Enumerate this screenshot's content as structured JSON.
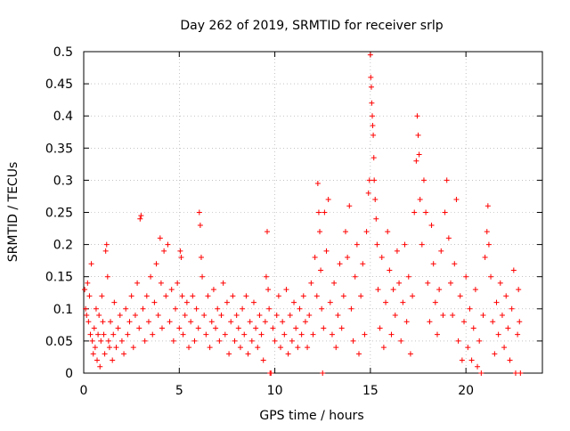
{
  "chart_data": {
    "type": "scatter",
    "title": "Day 262 of 2019, SRMTID for receiver srlp",
    "xlabel": "GPS time / hours",
    "ylabel": "SRMTID / TECUs",
    "xlim": [
      0,
      24
    ],
    "ylim": [
      0,
      0.5
    ],
    "x_ticks": [
      0,
      5,
      10,
      15,
      20
    ],
    "x_tick_labels": [
      "0",
      "5",
      "10",
      "15",
      "20"
    ],
    "y_ticks": [
      0,
      0.05,
      0.1,
      0.15,
      0.2,
      0.25,
      0.3,
      0.35,
      0.4,
      0.45,
      0.5
    ],
    "y_tick_labels": [
      "0",
      "0.05",
      "0.1",
      "0.15",
      "0.2",
      "0.25",
      "0.3",
      "0.35",
      "0.4",
      "0.45",
      "0.5"
    ],
    "grid": true,
    "marker": "+",
    "series": [
      {
        "name": "SRMTID",
        "color": "#ff0000",
        "points": [
          [
            0.05,
            0.13
          ],
          [
            0.1,
            0.1
          ],
          [
            0.15,
            0.09
          ],
          [
            0.2,
            0.14
          ],
          [
            0.25,
            0.08
          ],
          [
            0.3,
            0.12
          ],
          [
            0.35,
            0.06
          ],
          [
            0.4,
            0.17
          ],
          [
            0.45,
            0.05
          ],
          [
            0.5,
            0.03
          ],
          [
            0.55,
            0.07
          ],
          [
            0.6,
            0.04
          ],
          [
            0.65,
            0.1
          ],
          [
            0.7,
            0.02
          ],
          [
            0.75,
            0.06
          ],
          [
            0.8,
            0.09
          ],
          [
            0.85,
            0.01
          ],
          [
            0.9,
            0.05
          ],
          [
            0.95,
            0.12
          ],
          [
            1.0,
            0.08
          ],
          [
            1.05,
            0.06
          ],
          [
            1.1,
            0.03
          ],
          [
            1.15,
            0.19
          ],
          [
            1.2,
            0.2
          ],
          [
            1.25,
            0.15
          ],
          [
            1.3,
            0.05
          ],
          [
            1.35,
            0.04
          ],
          [
            1.4,
            0.08
          ],
          [
            1.5,
            0.02
          ],
          [
            1.55,
            0.06
          ],
          [
            1.6,
            0.11
          ],
          [
            1.7,
            0.04
          ],
          [
            1.8,
            0.07
          ],
          [
            1.9,
            0.09
          ],
          [
            2.0,
            0.05
          ],
          [
            2.1,
            0.03
          ],
          [
            2.2,
            0.1
          ],
          [
            2.3,
            0.06
          ],
          [
            2.4,
            0.08
          ],
          [
            2.5,
            0.12
          ],
          [
            2.6,
            0.04
          ],
          [
            2.7,
            0.09
          ],
          [
            2.8,
            0.14
          ],
          [
            2.9,
            0.07
          ],
          [
            2.95,
            0.24
          ],
          [
            3.0,
            0.245
          ],
          [
            3.1,
            0.1
          ],
          [
            3.2,
            0.05
          ],
          [
            3.3,
            0.12
          ],
          [
            3.4,
            0.08
          ],
          [
            3.5,
            0.15
          ],
          [
            3.6,
            0.06
          ],
          [
            3.7,
            0.11
          ],
          [
            3.8,
            0.17
          ],
          [
            3.9,
            0.09
          ],
          [
            4.0,
            0.21
          ],
          [
            4.05,
            0.14
          ],
          [
            4.1,
            0.07
          ],
          [
            4.2,
            0.19
          ],
          [
            4.3,
            0.12
          ],
          [
            4.4,
            0.2
          ],
          [
            4.5,
            0.08
          ],
          [
            4.6,
            0.13
          ],
          [
            4.7,
            0.05
          ],
          [
            4.8,
            0.1
          ],
          [
            4.9,
            0.14
          ],
          [
            5.0,
            0.07
          ],
          [
            5.05,
            0.19
          ],
          [
            5.1,
            0.18
          ],
          [
            5.15,
            0.12
          ],
          [
            5.2,
            0.06
          ],
          [
            5.3,
            0.09
          ],
          [
            5.4,
            0.11
          ],
          [
            5.5,
            0.04
          ],
          [
            5.6,
            0.08
          ],
          [
            5.7,
            0.12
          ],
          [
            5.8,
            0.05
          ],
          [
            5.9,
            0.1
          ],
          [
            6.0,
            0.07
          ],
          [
            6.05,
            0.25
          ],
          [
            6.1,
            0.23
          ],
          [
            6.15,
            0.18
          ],
          [
            6.2,
            0.15
          ],
          [
            6.3,
            0.09
          ],
          [
            6.4,
            0.06
          ],
          [
            6.5,
            0.12
          ],
          [
            6.6,
            0.04
          ],
          [
            6.7,
            0.08
          ],
          [
            6.8,
            0.13
          ],
          [
            6.9,
            0.07
          ],
          [
            7.0,
            0.1
          ],
          [
            7.1,
            0.05
          ],
          [
            7.2,
            0.09
          ],
          [
            7.3,
            0.14
          ],
          [
            7.4,
            0.06
          ],
          [
            7.5,
            0.11
          ],
          [
            7.6,
            0.03
          ],
          [
            7.7,
            0.08
          ],
          [
            7.8,
            0.12
          ],
          [
            7.9,
            0.05
          ],
          [
            8.0,
            0.09
          ],
          [
            8.1,
            0.07
          ],
          [
            8.2,
            0.04
          ],
          [
            8.3,
            0.1
          ],
          [
            8.4,
            0.06
          ],
          [
            8.5,
            0.12
          ],
          [
            8.6,
            0.03
          ],
          [
            8.7,
            0.08
          ],
          [
            8.8,
            0.05
          ],
          [
            8.9,
            0.11
          ],
          [
            9.0,
            0.07
          ],
          [
            9.1,
            0.04
          ],
          [
            9.2,
            0.09
          ],
          [
            9.3,
            0.06
          ],
          [
            9.4,
            0.02
          ],
          [
            9.5,
            0.08
          ],
          [
            9.55,
            0.15
          ],
          [
            9.6,
            0.22
          ],
          [
            9.65,
            0.13
          ],
          [
            9.7,
            0.1
          ],
          [
            9.75,
            0.0
          ],
          [
            9.8,
            0.0
          ],
          [
            9.9,
            0.07
          ],
          [
            10.0,
            0.05
          ],
          [
            10.1,
            0.09
          ],
          [
            10.2,
            0.12
          ],
          [
            10.3,
            0.04
          ],
          [
            10.4,
            0.08
          ],
          [
            10.5,
            0.06
          ],
          [
            10.6,
            0.13
          ],
          [
            10.7,
            0.03
          ],
          [
            10.8,
            0.09
          ],
          [
            10.9,
            0.05
          ],
          [
            11.0,
            0.11
          ],
          [
            11.1,
            0.07
          ],
          [
            11.2,
            0.04
          ],
          [
            11.3,
            0.1
          ],
          [
            11.4,
            0.06
          ],
          [
            11.5,
            0.12
          ],
          [
            11.6,
            0.08
          ],
          [
            11.7,
            0.04
          ],
          [
            11.8,
            0.09
          ],
          [
            11.9,
            0.14
          ],
          [
            12.0,
            0.06
          ],
          [
            12.1,
            0.18
          ],
          [
            12.2,
            0.12
          ],
          [
            12.25,
            0.295
          ],
          [
            12.3,
            0.25
          ],
          [
            12.35,
            0.22
          ],
          [
            12.4,
            0.16
          ],
          [
            12.45,
            0.1
          ],
          [
            12.5,
            0.0
          ],
          [
            12.55,
            0.07
          ],
          [
            12.6,
            0.25
          ],
          [
            12.7,
            0.19
          ],
          [
            12.8,
            0.27
          ],
          [
            12.9,
            0.11
          ],
          [
            13.0,
            0.06
          ],
          [
            13.1,
            0.14
          ],
          [
            13.2,
            0.04
          ],
          [
            13.3,
            0.09
          ],
          [
            13.4,
            0.17
          ],
          [
            13.5,
            0.07
          ],
          [
            13.6,
            0.12
          ],
          [
            13.7,
            0.22
          ],
          [
            13.8,
            0.18
          ],
          [
            13.9,
            0.26
          ],
          [
            14.0,
            0.1
          ],
          [
            14.1,
            0.05
          ],
          [
            14.2,
            0.15
          ],
          [
            14.3,
            0.2
          ],
          [
            14.4,
            0.03
          ],
          [
            14.5,
            0.12
          ],
          [
            14.6,
            0.17
          ],
          [
            14.7,
            0.06
          ],
          [
            14.8,
            0.22
          ],
          [
            14.9,
            0.28
          ],
          [
            14.95,
            0.3
          ],
          [
            15.0,
            0.495
          ],
          [
            15.02,
            0.46
          ],
          [
            15.05,
            0.445
          ],
          [
            15.07,
            0.42
          ],
          [
            15.1,
            0.4
          ],
          [
            15.12,
            0.385
          ],
          [
            15.15,
            0.37
          ],
          [
            15.18,
            0.335
          ],
          [
            15.2,
            0.3
          ],
          [
            15.25,
            0.27
          ],
          [
            15.3,
            0.24
          ],
          [
            15.35,
            0.2
          ],
          [
            15.4,
            0.13
          ],
          [
            15.5,
            0.07
          ],
          [
            15.6,
            0.18
          ],
          [
            15.7,
            0.04
          ],
          [
            15.8,
            0.11
          ],
          [
            15.9,
            0.22
          ],
          [
            16.0,
            0.16
          ],
          [
            16.1,
            0.06
          ],
          [
            16.2,
            0.13
          ],
          [
            16.3,
            0.09
          ],
          [
            16.4,
            0.19
          ],
          [
            16.5,
            0.14
          ],
          [
            16.6,
            0.05
          ],
          [
            16.7,
            0.11
          ],
          [
            16.8,
            0.2
          ],
          [
            16.9,
            0.08
          ],
          [
            17.0,
            0.15
          ],
          [
            17.1,
            0.03
          ],
          [
            17.2,
            0.12
          ],
          [
            17.3,
            0.25
          ],
          [
            17.4,
            0.33
          ],
          [
            17.45,
            0.4
          ],
          [
            17.5,
            0.37
          ],
          [
            17.55,
            0.34
          ],
          [
            17.6,
            0.27
          ],
          [
            17.7,
            0.2
          ],
          [
            17.8,
            0.3
          ],
          [
            17.9,
            0.25
          ],
          [
            18.0,
            0.14
          ],
          [
            18.1,
            0.08
          ],
          [
            18.2,
            0.23
          ],
          [
            18.3,
            0.17
          ],
          [
            18.4,
            0.11
          ],
          [
            18.5,
            0.06
          ],
          [
            18.6,
            0.13
          ],
          [
            18.7,
            0.19
          ],
          [
            18.8,
            0.09
          ],
          [
            18.9,
            0.25
          ],
          [
            19.0,
            0.3
          ],
          [
            19.1,
            0.21
          ],
          [
            19.2,
            0.14
          ],
          [
            19.3,
            0.09
          ],
          [
            19.4,
            0.17
          ],
          [
            19.5,
            0.27
          ],
          [
            19.6,
            0.05
          ],
          [
            19.7,
            0.12
          ],
          [
            19.8,
            0.02
          ],
          [
            19.9,
            0.08
          ],
          [
            20.0,
            0.15
          ],
          [
            20.1,
            0.04
          ],
          [
            20.2,
            0.1
          ],
          [
            20.3,
            0.02
          ],
          [
            20.4,
            0.07
          ],
          [
            20.5,
            0.13
          ],
          [
            20.6,
            0.01
          ],
          [
            20.7,
            0.05
          ],
          [
            20.8,
            0.0
          ],
          [
            20.9,
            0.09
          ],
          [
            21.0,
            0.18
          ],
          [
            21.1,
            0.22
          ],
          [
            21.15,
            0.26
          ],
          [
            21.2,
            0.2
          ],
          [
            21.3,
            0.15
          ],
          [
            21.4,
            0.08
          ],
          [
            21.5,
            0.03
          ],
          [
            21.6,
            0.11
          ],
          [
            21.7,
            0.06
          ],
          [
            21.8,
            0.14
          ],
          [
            21.9,
            0.09
          ],
          [
            22.0,
            0.04
          ],
          [
            22.1,
            0.12
          ],
          [
            22.2,
            0.07
          ],
          [
            22.3,
            0.02
          ],
          [
            22.4,
            0.1
          ],
          [
            22.5,
            0.16
          ],
          [
            22.6,
            0.0
          ],
          [
            22.7,
            0.06
          ],
          [
            22.75,
            0.13
          ],
          [
            22.8,
            0.08
          ],
          [
            22.85,
            0.0
          ]
        ]
      }
    ]
  }
}
